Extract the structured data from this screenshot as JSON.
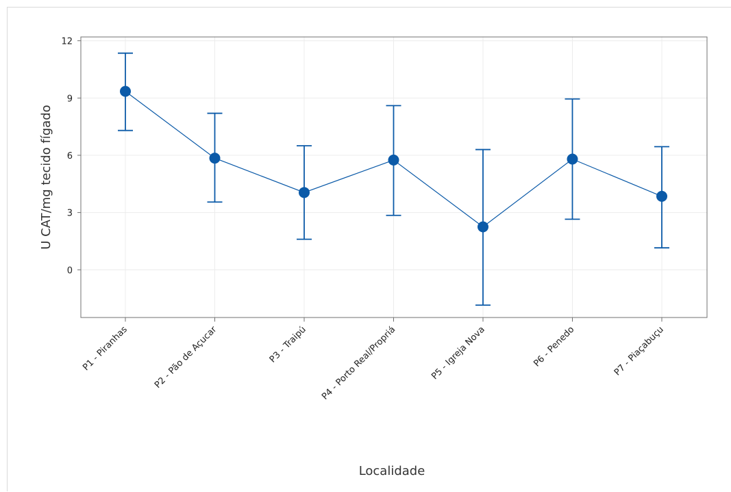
{
  "chart_data": {
    "type": "line",
    "title": "",
    "xlabel": "Localidade",
    "ylabel": "U CAT/mg tecido fígado",
    "ylim": [
      -2.5,
      12.2
    ],
    "yticks": [
      0,
      3,
      6,
      9,
      12
    ],
    "grid": true,
    "legend": "none",
    "categories": [
      "P1 - Piranhas",
      "P2 - Pão de Açucar",
      "P3 - Traipú",
      "P4 - Porto Real/Propriá",
      "P5 - Igreja Nova",
      "P6 - Penedo",
      "P7 - Piaçabuçu"
    ],
    "series": [
      {
        "values": [
          9.35,
          5.85,
          4.05,
          5.75,
          2.25,
          5.8,
          3.85
        ],
        "error_upper": [
          11.35,
          8.2,
          6.5,
          8.6,
          6.3,
          8.95,
          6.45
        ],
        "error_lower": [
          7.3,
          3.55,
          1.6,
          2.85,
          -1.85,
          2.65,
          1.15
        ],
        "color": "#0b5aa8"
      }
    ]
  }
}
